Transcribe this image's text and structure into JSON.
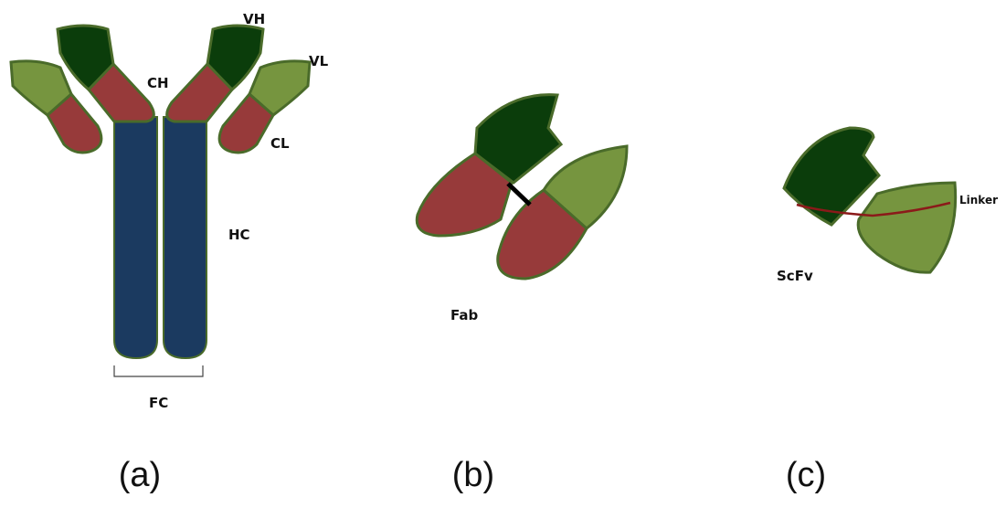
{
  "panels": [
    {
      "caption": "(a)",
      "labels": [
        "VH",
        "VL",
        "CH",
        "CL",
        "HC",
        "FC"
      ]
    },
    {
      "caption": "(b)",
      "labels": [
        "Fab"
      ]
    },
    {
      "caption": "(c)",
      "labels": [
        "ScFv",
        "Linker"
      ]
    }
  ]
}
